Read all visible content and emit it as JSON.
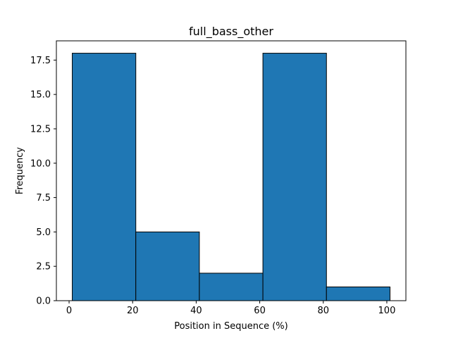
{
  "chart_data": {
    "type": "bar",
    "title": "full_bass_other",
    "xlabel": "Position in Sequence (%)",
    "ylabel": "Frequency",
    "bins": [
      {
        "x0": 1,
        "x1": 21,
        "value": 18
      },
      {
        "x0": 21,
        "x1": 41,
        "value": 5
      },
      {
        "x0": 41,
        "x1": 61,
        "value": 2
      },
      {
        "x0": 61,
        "x1": 81,
        "value": 18
      },
      {
        "x0": 81,
        "x1": 101,
        "value": 1
      }
    ],
    "xlim": [
      -4,
      106
    ],
    "ylim": [
      0,
      18.9
    ],
    "xticks": [
      0,
      20,
      40,
      60,
      80,
      100
    ],
    "xtick_labels": [
      "0",
      "20",
      "40",
      "60",
      "80",
      "100"
    ],
    "yticks": [
      0,
      2.5,
      5,
      7.5,
      10,
      12.5,
      15,
      17.5
    ],
    "ytick_labels": [
      "0.0",
      "2.5",
      "5.0",
      "7.5",
      "10.0",
      "12.5",
      "15.0",
      "17.5"
    ],
    "bar_color": "#1f77b4",
    "edge_color": "#000000",
    "grid": false,
    "legend": "none"
  }
}
